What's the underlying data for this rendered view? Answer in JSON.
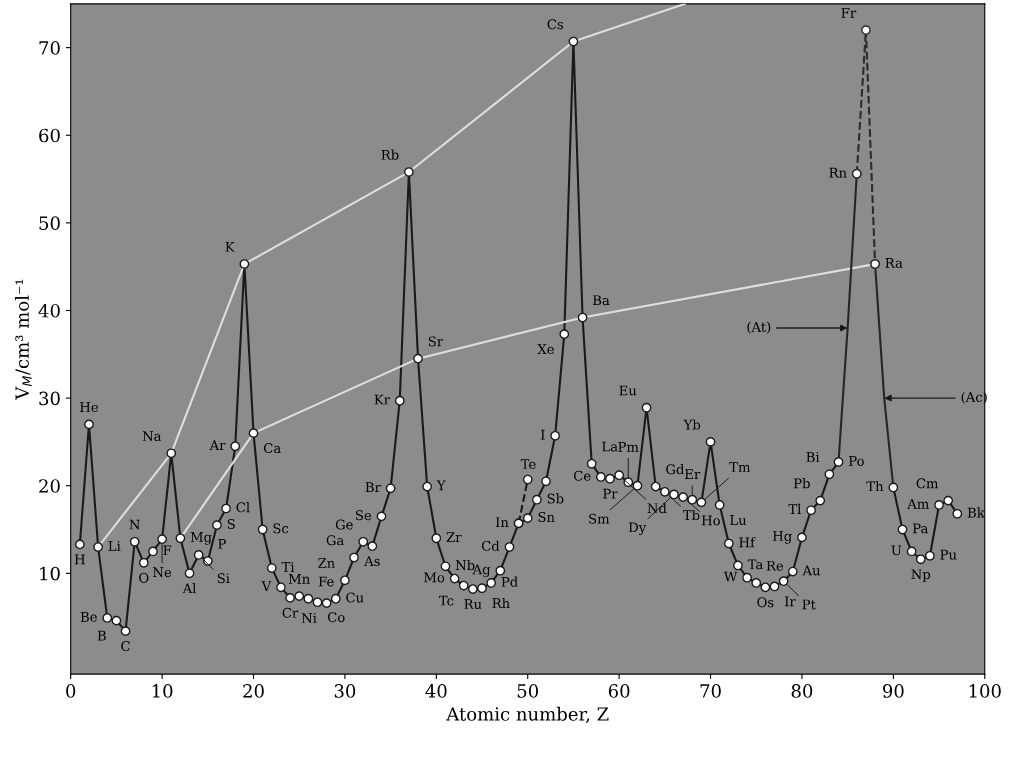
{
  "chart_data": {
    "type": "line",
    "xlabel": "Atomic number, Z",
    "ylabel": "V$_{M}$/cm³ mol⁻¹",
    "xlim": [
      0,
      100
    ],
    "ylim": [
      -1.5,
      75
    ],
    "xticks": [
      0,
      10,
      20,
      30,
      40,
      50,
      60,
      70,
      80,
      90,
      100
    ],
    "yticks": [
      10,
      20,
      30,
      40,
      50,
      60,
      70
    ],
    "grid": false,
    "x": [
      1,
      2,
      3,
      4,
      5,
      6,
      7,
      8,
      9,
      10,
      11,
      12,
      13,
      14,
      15,
      16,
      17,
      18,
      19,
      20,
      21,
      22,
      23,
      24,
      25,
      26,
      27,
      28,
      29,
      30,
      31,
      32,
      33,
      34,
      35,
      36,
      37,
      38,
      39,
      40,
      41,
      42,
      43,
      44,
      45,
      46,
      47,
      48,
      49,
      50,
      51,
      52,
      53,
      54,
      55,
      56,
      57,
      58,
      59,
      60,
      61,
      62,
      63,
      64,
      65,
      66,
      67,
      68,
      69,
      70,
      71,
      72,
      73,
      74,
      75,
      76,
      77,
      78,
      79,
      80,
      81,
      82,
      83,
      84,
      85,
      86,
      87,
      88,
      89,
      90,
      91,
      92,
      93,
      94,
      95,
      96,
      97
    ],
    "series": [
      {
        "color": "#1a1a1a",
        "marker": "circle",
        "line_style": "solid",
        "values": [
          13.3,
          27.0,
          13.0,
          4.9,
          4.6,
          3.4,
          13.6,
          11.2,
          12.5,
          13.9,
          23.7,
          14.0,
          10.0,
          12.1,
          11.4,
          15.5,
          17.4,
          24.5,
          45.3,
          26.0,
          15.0,
          10.6,
          8.4,
          7.2,
          7.4,
          7.1,
          6.7,
          6.6,
          7.1,
          9.2,
          11.8,
          13.6,
          13.1,
          16.5,
          19.7,
          29.7,
          55.8,
          34.5,
          19.9,
          14.0,
          10.8,
          9.4,
          8.6,
          8.2,
          8.3,
          8.9,
          10.3,
          13.0,
          15.7,
          16.3,
          18.4,
          20.5,
          25.7,
          37.3,
          70.7,
          39.2,
          22.5,
          21.0,
          20.8,
          21.2,
          20.4,
          20.0,
          28.9,
          19.9,
          19.3,
          19.0,
          18.7,
          18.4,
          18.1,
          25.0,
          17.8,
          13.4,
          10.9,
          9.5,
          8.9,
          8.4,
          8.5,
          9.1,
          10.2,
          14.1,
          17.2,
          18.3,
          21.3,
          22.7,
          null,
          55.6,
          null,
          45.3,
          null,
          19.8,
          15.0,
          12.5,
          11.6,
          12.0,
          17.8,
          18.3,
          16.8
        ]
      },
      {
        "color": "#2b2b2b",
        "marker": "circle",
        "line_style": "dashed",
        "x": [
          86,
          87,
          88
        ],
        "values": [
          55.6,
          72.0,
          45.3
        ]
      },
      {
        "color": "#1a1a1a",
        "marker": "circle",
        "line_style": "dashed",
        "x": [
          49,
          50
        ],
        "values": [
          15.7,
          20.7
        ]
      },
      {
        "color": "#dedede",
        "marker": "none",
        "line_style": "solid",
        "x": [
          3,
          11,
          19,
          37,
          55,
          67.2
        ],
        "values": [
          13.0,
          23.7,
          45.3,
          55.8,
          70.7,
          75.0
        ]
      },
      {
        "color": "#dedede",
        "marker": "none",
        "line_style": "solid",
        "x": [
          12,
          20,
          38,
          56,
          88
        ],
        "values": [
          14.0,
          26.0,
          34.5,
          39.2,
          45.3
        ]
      },
      {
        "color": "#262626",
        "marker": "none",
        "line_style": "solid",
        "x": [
          84,
          85,
          86
        ],
        "values": [
          22.7,
          38,
          55.6
        ]
      },
      {
        "color": "#262626",
        "marker": "none",
        "line_style": "solid",
        "x": [
          88,
          89,
          90
        ],
        "values": [
          45.3,
          30,
          19.8
        ]
      }
    ],
    "annotations": [
      {
        "text": "H",
        "x": 1,
        "y": 13.3
      },
      {
        "text": "He",
        "x": 2,
        "y": 27.0
      },
      {
        "text": "Li",
        "x": 3,
        "y": 13.0
      },
      {
        "text": "Be",
        "x": 4,
        "y": 4.9
      },
      {
        "text": "B",
        "x": 5,
        "y": 4.6
      },
      {
        "text": "C",
        "x": 6,
        "y": 3.4
      },
      {
        "text": "N",
        "x": 7,
        "y": 13.6
      },
      {
        "text": "O",
        "x": 8,
        "y": 11.2
      },
      {
        "text": "F",
        "x": 9,
        "y": 12.5
      },
      {
        "text": "Ne",
        "x": 10,
        "y": 13.9
      },
      {
        "text": "Na",
        "x": 11,
        "y": 23.7
      },
      {
        "text": "Mg",
        "x": 12,
        "y": 14.0
      },
      {
        "text": "Al",
        "x": 13,
        "y": 10.0
      },
      {
        "text": "Si",
        "x": 14,
        "y": 12.1
      },
      {
        "text": "P",
        "x": 15,
        "y": 11.4
      },
      {
        "text": "S",
        "x": 16,
        "y": 15.5
      },
      {
        "text": "Cl",
        "x": 17,
        "y": 17.4
      },
      {
        "text": "Ar",
        "x": 18,
        "y": 24.5
      },
      {
        "text": "K",
        "x": 19,
        "y": 45.3
      },
      {
        "text": "Ca",
        "x": 20,
        "y": 26.0
      },
      {
        "text": "Sc",
        "x": 21,
        "y": 15.0
      },
      {
        "text": "Ti",
        "x": 22,
        "y": 10.6
      },
      {
        "text": "V",
        "x": 23,
        "y": 8.4
      },
      {
        "text": "Cr",
        "x": 24,
        "y": 7.2
      },
      {
        "text": "Mn",
        "x": 25,
        "y": 7.4
      },
      {
        "text": "Fe",
        "x": 26,
        "y": 7.1
      },
      {
        "text": "Co",
        "x": 27,
        "y": 6.7
      },
      {
        "text": "Ni",
        "x": 28,
        "y": 6.6
      },
      {
        "text": "Cu",
        "x": 29,
        "y": 7.1
      },
      {
        "text": "Zn",
        "x": 30,
        "y": 9.2
      },
      {
        "text": "Ga",
        "x": 31,
        "y": 11.8
      },
      {
        "text": "Ge",
        "x": 32,
        "y": 13.6
      },
      {
        "text": "As",
        "x": 33,
        "y": 13.1
      },
      {
        "text": "Se",
        "x": 34,
        "y": 16.5
      },
      {
        "text": "Br",
        "x": 35,
        "y": 19.7
      },
      {
        "text": "Kr",
        "x": 36,
        "y": 29.7
      },
      {
        "text": "Rb",
        "x": 37,
        "y": 55.8
      },
      {
        "text": "Sr",
        "x": 38,
        "y": 34.5
      },
      {
        "text": "Y",
        "x": 39,
        "y": 19.9
      },
      {
        "text": "Zr",
        "x": 40,
        "y": 14.0
      },
      {
        "text": "Nb",
        "x": 41,
        "y": 10.8
      },
      {
        "text": "Mo",
        "x": 42,
        "y": 9.4
      },
      {
        "text": "Tc",
        "x": 43,
        "y": 8.6
      },
      {
        "text": "Ru",
        "x": 44,
        "y": 8.2
      },
      {
        "text": "Rh",
        "x": 45,
        "y": 8.3
      },
      {
        "text": "Pd",
        "x": 46,
        "y": 8.9
      },
      {
        "text": "Ag",
        "x": 47,
        "y": 10.3
      },
      {
        "text": "Cd",
        "x": 48,
        "y": 13.0
      },
      {
        "text": "In",
        "x": 49,
        "y": 15.7
      },
      {
        "text": "Sn",
        "x": 50,
        "y": 16.3
      },
      {
        "text": "Sb",
        "x": 51,
        "y": 18.4
      },
      {
        "text": "Te",
        "x": 52,
        "y": 20.5
      },
      {
        "text": "I",
        "x": 53,
        "y": 25.7
      },
      {
        "text": "Xe",
        "x": 54,
        "y": 37.3
      },
      {
        "text": "Cs",
        "x": 55,
        "y": 70.7
      },
      {
        "text": "Ba",
        "x": 56,
        "y": 39.2
      },
      {
        "text": "La",
        "x": 57,
        "y": 22.5
      },
      {
        "text": "Ce",
        "x": 58,
        "y": 21.0
      },
      {
        "text": "Pr",
        "x": 59,
        "y": 20.8
      },
      {
        "text": "Nd",
        "x": 60,
        "y": 21.2
      },
      {
        "text": "Pm",
        "x": 61,
        "y": 20.4
      },
      {
        "text": "Sm",
        "x": 62,
        "y": 20.0
      },
      {
        "text": "Eu",
        "x": 63,
        "y": 28.9
      },
      {
        "text": "Gd",
        "x": 64,
        "y": 19.9
      },
      {
        "text": "Tb",
        "x": 65,
        "y": 19.3
      },
      {
        "text": "Dy",
        "x": 66,
        "y": 19.0
      },
      {
        "text": "Ho",
        "x": 67,
        "y": 18.7
      },
      {
        "text": "Er",
        "x": 68,
        "y": 18.4
      },
      {
        "text": "Tm",
        "x": 69,
        "y": 18.1
      },
      {
        "text": "Yb",
        "x": 70,
        "y": 25.0
      },
      {
        "text": "Lu",
        "x": 71,
        "y": 17.8
      },
      {
        "text": "Hf",
        "x": 72,
        "y": 13.4
      },
      {
        "text": "Ta",
        "x": 73,
        "y": 10.9
      },
      {
        "text": "W",
        "x": 74,
        "y": 9.5
      },
      {
        "text": "Re",
        "x": 75,
        "y": 8.9
      },
      {
        "text": "Os",
        "x": 76,
        "y": 8.4
      },
      {
        "text": "Ir",
        "x": 77,
        "y": 8.5
      },
      {
        "text": "Pt",
        "x": 78,
        "y": 9.1
      },
      {
        "text": "Au",
        "x": 79,
        "y": 10.2
      },
      {
        "text": "Hg",
        "x": 80,
        "y": 14.1
      },
      {
        "text": "Tl",
        "x": 81,
        "y": 17.2
      },
      {
        "text": "Pb",
        "x": 82,
        "y": 18.3
      },
      {
        "text": "Bi",
        "x": 83,
        "y": 21.3
      },
      {
        "text": "Po",
        "x": 84,
        "y": 22.7
      },
      {
        "text": "(At)",
        "x": 85,
        "y": 38
      },
      {
        "text": "Rn",
        "x": 86,
        "y": 55.6
      },
      {
        "text": "Fr",
        "x": 87,
        "y": 72.0
      },
      {
        "text": "Ra",
        "x": 88,
        "y": 45.3
      },
      {
        "text": "(Ac)",
        "x": 89,
        "y": 30
      },
      {
        "text": "Th",
        "x": 90,
        "y": 19.8
      },
      {
        "text": "Pa",
        "x": 91,
        "y": 15.0
      },
      {
        "text": "U",
        "x": 92,
        "y": 12.5
      },
      {
        "text": "Np",
        "x": 93,
        "y": 11.6
      },
      {
        "text": "Pu",
        "x": 94,
        "y": 12.0
      },
      {
        "text": "Am",
        "x": 95,
        "y": 17.8
      },
      {
        "text": "Cm",
        "x": 96,
        "y": 18.3
      },
      {
        "text": "Bk",
        "x": 97,
        "y": 16.8
      }
    ]
  }
}
